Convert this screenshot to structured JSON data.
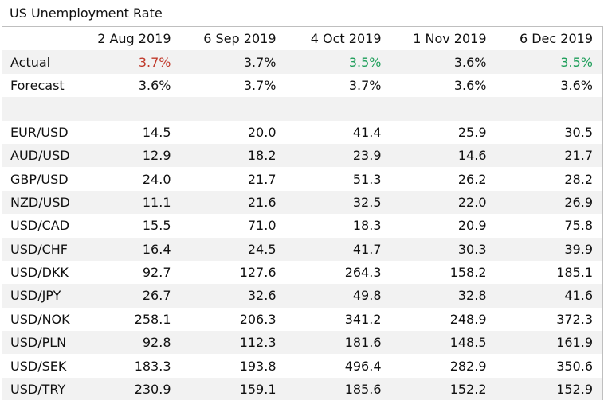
{
  "title": "US Unemployment Rate",
  "colors": {
    "up": "#c0392b",
    "down": "#1e9e5a",
    "row_alt": "#f2f2f2",
    "border": "#bfbfbf"
  },
  "table": {
    "columns": [
      "",
      "2 Aug 2019",
      "6 Sep 2019",
      "4 Oct 2019",
      "1 Nov 2019",
      "6 Dec 2019"
    ],
    "actual": {
      "label": "Actual",
      "values": [
        "3.7%",
        "3.7%",
        "3.5%",
        "3.6%",
        "3.5%"
      ],
      "value_colors": [
        "red",
        "",
        "green",
        "",
        "green"
      ]
    },
    "forecast": {
      "label": "Forecast",
      "values": [
        "3.6%",
        "3.7%",
        "3.7%",
        "3.6%",
        "3.6%"
      ]
    },
    "pairs": [
      {
        "label": "EUR/USD",
        "values": [
          "14.5",
          "20.0",
          "41.4",
          "25.9",
          "30.5"
        ]
      },
      {
        "label": "AUD/USD",
        "values": [
          "12.9",
          "18.2",
          "23.9",
          "14.6",
          "21.7"
        ]
      },
      {
        "label": "GBP/USD",
        "values": [
          "24.0",
          "21.7",
          "51.3",
          "26.2",
          "28.2"
        ]
      },
      {
        "label": "NZD/USD",
        "values": [
          "11.1",
          "21.6",
          "32.5",
          "22.0",
          "26.9"
        ]
      },
      {
        "label": "USD/CAD",
        "values": [
          "15.5",
          "71.0",
          "18.3",
          "20.9",
          "75.8"
        ]
      },
      {
        "label": "USD/CHF",
        "values": [
          "16.4",
          "24.5",
          "41.7",
          "30.3",
          "39.9"
        ]
      },
      {
        "label": "USD/DKK",
        "values": [
          "92.7",
          "127.6",
          "264.3",
          "158.2",
          "185.1"
        ]
      },
      {
        "label": "USD/JPY",
        "values": [
          "26.7",
          "32.6",
          "49.8",
          "32.8",
          "41.6"
        ]
      },
      {
        "label": "USD/NOK",
        "values": [
          "258.1",
          "206.3",
          "341.2",
          "248.9",
          "372.3"
        ]
      },
      {
        "label": "USD/PLN",
        "values": [
          "92.8",
          "112.3",
          "181.6",
          "148.5",
          "161.9"
        ]
      },
      {
        "label": "USD/SEK",
        "values": [
          "183.3",
          "193.8",
          "496.4",
          "282.9",
          "350.6"
        ]
      },
      {
        "label": "USD/TRY",
        "values": [
          "230.9",
          "159.1",
          "185.6",
          "152.2",
          "152.9"
        ]
      }
    ]
  }
}
